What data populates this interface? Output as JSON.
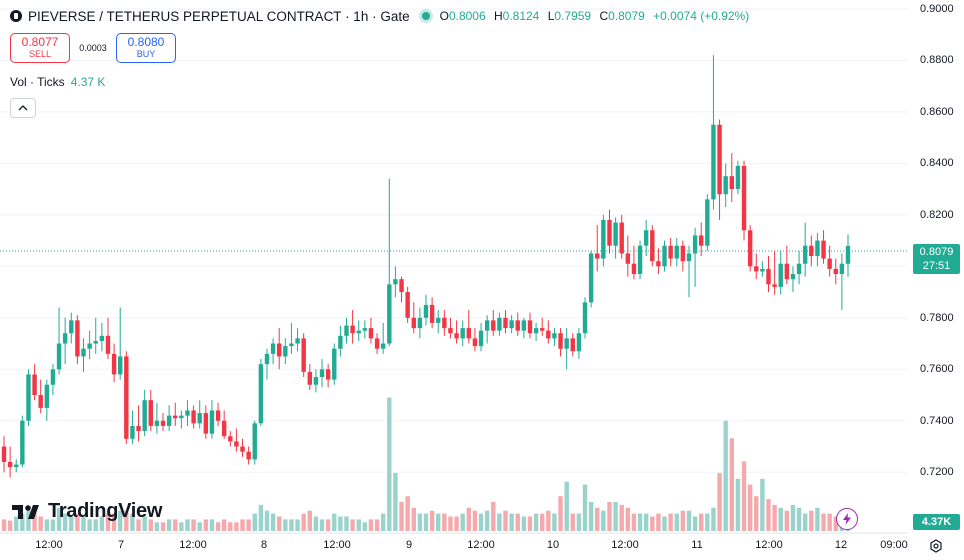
{
  "header": {
    "title": "PIEVERSE / TETHERUS PERPETUAL CONTRACT · 1h · Gate",
    "o_label": "O",
    "o": "0.8006",
    "h_label": "H",
    "h": "0.8124",
    "l_label": "L",
    "l": "0.7959",
    "c_label": "C",
    "c": "0.8079",
    "change": "+0.0074 (+0.92%)"
  },
  "trade": {
    "sell_price": "0.8077",
    "sell_label": "SELL",
    "spread": "0.0003",
    "buy_price": "0.8080",
    "buy_label": "BUY"
  },
  "volume_legend": {
    "label": "Vol · Ticks",
    "value": "4.37 K"
  },
  "price_tag": {
    "price": "0.8079",
    "countdown": "27:51"
  },
  "volume_tag": "4.37K",
  "brand": "TradingView",
  "y_axis": [
    "0.9000",
    "0.8800",
    "0.8600",
    "0.8400",
    "0.8200",
    "0.8000",
    "0.7800",
    "0.7600",
    "0.7400",
    "0.7200"
  ],
  "x_axis": [
    "12:00",
    "7",
    "12:00",
    "8",
    "12:00",
    "9",
    "12:00",
    "10",
    "12:00",
    "11",
    "12:00",
    "12",
    "09:00"
  ],
  "colors": {
    "up": "#22ab94",
    "down": "#f23645",
    "vol_up": "#99d3cb",
    "vol_down": "#f4a9ad"
  },
  "chart_data": {
    "type": "candlestick",
    "title": "PIEVERSE / TETHERUS PERPETUAL CONTRACT · 1h · Gate",
    "x_ticks": [
      "12:00",
      "7",
      "12:00",
      "8",
      "12:00",
      "9",
      "12:00",
      "10",
      "12:00",
      "11",
      "12:00",
      "12",
      "09:00"
    ],
    "y_ticks": [
      0.9,
      0.88,
      0.86,
      0.84,
      0.82,
      0.8,
      0.78,
      0.76,
      0.74,
      0.72
    ],
    "ylim": [
      0.7135,
      0.9015
    ],
    "last_price": 0.8079,
    "candles": [
      [
        0.73,
        0.734,
        0.72,
        0.724
      ],
      [
        0.724,
        0.73,
        0.718,
        0.722
      ],
      [
        0.722,
        0.725,
        0.72,
        0.723
      ],
      [
        0.723,
        0.742,
        0.722,
        0.74
      ],
      [
        0.74,
        0.76,
        0.738,
        0.758
      ],
      [
        0.758,
        0.762,
        0.748,
        0.75
      ],
      [
        0.75,
        0.756,
        0.743,
        0.745
      ],
      [
        0.745,
        0.756,
        0.74,
        0.754
      ],
      [
        0.754,
        0.762,
        0.75,
        0.76
      ],
      [
        0.76,
        0.784,
        0.758,
        0.77
      ],
      [
        0.77,
        0.78,
        0.762,
        0.774
      ],
      [
        0.774,
        0.782,
        0.77,
        0.779
      ],
      [
        0.779,
        0.781,
        0.762,
        0.765
      ],
      [
        0.765,
        0.772,
        0.759,
        0.768
      ],
      [
        0.768,
        0.775,
        0.764,
        0.77
      ],
      [
        0.77,
        0.78,
        0.766,
        0.771
      ],
      [
        0.771,
        0.778,
        0.767,
        0.773
      ],
      [
        0.773,
        0.78,
        0.764,
        0.766
      ],
      [
        0.766,
        0.77,
        0.755,
        0.758
      ],
      [
        0.758,
        0.784,
        0.756,
        0.765
      ],
      [
        0.765,
        0.767,
        0.731,
        0.733
      ],
      [
        0.733,
        0.744,
        0.731,
        0.738
      ],
      [
        0.738,
        0.746,
        0.732,
        0.736
      ],
      [
        0.736,
        0.752,
        0.734,
        0.748
      ],
      [
        0.748,
        0.752,
        0.736,
        0.738
      ],
      [
        0.738,
        0.747,
        0.735,
        0.74
      ],
      [
        0.74,
        0.743,
        0.736,
        0.738
      ],
      [
        0.738,
        0.746,
        0.736,
        0.742
      ],
      [
        0.742,
        0.747,
        0.738,
        0.741
      ],
      [
        0.741,
        0.744,
        0.737,
        0.742
      ],
      [
        0.742,
        0.748,
        0.738,
        0.744
      ],
      [
        0.744,
        0.746,
        0.737,
        0.739
      ],
      [
        0.739,
        0.748,
        0.737,
        0.743
      ],
      [
        0.743,
        0.746,
        0.733,
        0.735
      ],
      [
        0.735,
        0.748,
        0.733,
        0.744
      ],
      [
        0.744,
        0.747,
        0.738,
        0.74
      ],
      [
        0.74,
        0.744,
        0.733,
        0.734
      ],
      [
        0.734,
        0.736,
        0.73,
        0.732
      ],
      [
        0.732,
        0.737,
        0.728,
        0.73
      ],
      [
        0.73,
        0.733,
        0.726,
        0.728
      ],
      [
        0.728,
        0.73,
        0.723,
        0.725
      ],
      [
        0.725,
        0.74,
        0.723,
        0.739
      ],
      [
        0.739,
        0.764,
        0.738,
        0.762
      ],
      [
        0.762,
        0.768,
        0.756,
        0.766
      ],
      [
        0.766,
        0.772,
        0.762,
        0.77
      ],
      [
        0.77,
        0.776,
        0.76,
        0.765
      ],
      [
        0.765,
        0.772,
        0.762,
        0.769
      ],
      [
        0.769,
        0.778,
        0.766,
        0.77
      ],
      [
        0.77,
        0.776,
        0.767,
        0.772
      ],
      [
        0.772,
        0.774,
        0.757,
        0.759
      ],
      [
        0.759,
        0.762,
        0.752,
        0.754
      ],
      [
        0.754,
        0.76,
        0.751,
        0.757
      ],
      [
        0.757,
        0.764,
        0.753,
        0.76
      ],
      [
        0.76,
        0.762,
        0.753,
        0.756
      ],
      [
        0.756,
        0.77,
        0.754,
        0.768
      ],
      [
        0.768,
        0.777,
        0.765,
        0.773
      ],
      [
        0.773,
        0.78,
        0.77,
        0.777
      ],
      [
        0.777,
        0.783,
        0.77,
        0.774
      ],
      [
        0.774,
        0.779,
        0.771,
        0.775
      ],
      [
        0.775,
        0.779,
        0.772,
        0.776
      ],
      [
        0.776,
        0.78,
        0.77,
        0.772
      ],
      [
        0.772,
        0.774,
        0.766,
        0.768
      ],
      [
        0.768,
        0.778,
        0.766,
        0.77
      ],
      [
        0.77,
        0.834,
        0.769,
        0.793
      ],
      [
        0.793,
        0.8,
        0.788,
        0.795
      ],
      [
        0.795,
        0.796,
        0.786,
        0.79
      ],
      [
        0.79,
        0.792,
        0.778,
        0.78
      ],
      [
        0.78,
        0.786,
        0.774,
        0.776
      ],
      [
        0.776,
        0.784,
        0.772,
        0.78
      ],
      [
        0.78,
        0.789,
        0.777,
        0.785
      ],
      [
        0.785,
        0.788,
        0.776,
        0.778
      ],
      [
        0.778,
        0.783,
        0.774,
        0.78
      ],
      [
        0.78,
        0.783,
        0.773,
        0.776
      ],
      [
        0.776,
        0.78,
        0.772,
        0.774
      ],
      [
        0.774,
        0.779,
        0.77,
        0.772
      ],
      [
        0.772,
        0.779,
        0.769,
        0.776
      ],
      [
        0.776,
        0.783,
        0.77,
        0.772
      ],
      [
        0.772,
        0.776,
        0.767,
        0.769
      ],
      [
        0.769,
        0.778,
        0.767,
        0.775
      ],
      [
        0.775,
        0.781,
        0.77,
        0.779
      ],
      [
        0.779,
        0.783,
        0.773,
        0.775
      ],
      [
        0.775,
        0.782,
        0.773,
        0.78
      ],
      [
        0.78,
        0.783,
        0.774,
        0.776
      ],
      [
        0.776,
        0.781,
        0.774,
        0.779
      ],
      [
        0.779,
        0.782,
        0.773,
        0.775
      ],
      [
        0.775,
        0.78,
        0.772,
        0.779
      ],
      [
        0.779,
        0.782,
        0.772,
        0.774
      ],
      [
        0.774,
        0.778,
        0.771,
        0.776
      ],
      [
        0.776,
        0.78,
        0.773,
        0.775
      ],
      [
        0.775,
        0.779,
        0.77,
        0.772
      ],
      [
        0.772,
        0.776,
        0.769,
        0.774
      ],
      [
        0.774,
        0.776,
        0.765,
        0.768
      ],
      [
        0.768,
        0.776,
        0.76,
        0.772
      ],
      [
        0.772,
        0.774,
        0.765,
        0.767
      ],
      [
        0.767,
        0.776,
        0.764,
        0.774
      ],
      [
        0.774,
        0.788,
        0.772,
        0.786
      ],
      [
        0.786,
        0.806,
        0.784,
        0.805
      ],
      [
        0.805,
        0.816,
        0.798,
        0.803
      ],
      [
        0.803,
        0.82,
        0.8,
        0.818
      ],
      [
        0.818,
        0.822,
        0.805,
        0.808
      ],
      [
        0.808,
        0.819,
        0.803,
        0.817
      ],
      [
        0.817,
        0.82,
        0.803,
        0.805
      ],
      [
        0.805,
        0.812,
        0.796,
        0.801
      ],
      [
        0.801,
        0.808,
        0.795,
        0.797
      ],
      [
        0.797,
        0.81,
        0.795,
        0.808
      ],
      [
        0.808,
        0.818,
        0.804,
        0.814
      ],
      [
        0.814,
        0.816,
        0.8,
        0.802
      ],
      [
        0.802,
        0.807,
        0.797,
        0.8
      ],
      [
        0.8,
        0.81,
        0.798,
        0.808
      ],
      [
        0.808,
        0.811,
        0.8,
        0.803
      ],
      [
        0.803,
        0.811,
        0.8,
        0.808
      ],
      [
        0.808,
        0.81,
        0.798,
        0.802
      ],
      [
        0.802,
        0.808,
        0.788,
        0.805
      ],
      [
        0.805,
        0.815,
        0.792,
        0.812
      ],
      [
        0.812,
        0.817,
        0.804,
        0.808
      ],
      [
        0.808,
        0.828,
        0.806,
        0.826
      ],
      [
        0.826,
        0.882,
        0.822,
        0.855
      ],
      [
        0.855,
        0.857,
        0.818,
        0.828
      ],
      [
        0.828,
        0.84,
        0.823,
        0.835
      ],
      [
        0.835,
        0.844,
        0.825,
        0.83
      ],
      [
        0.83,
        0.841,
        0.828,
        0.839
      ],
      [
        0.839,
        0.841,
        0.81,
        0.814
      ],
      [
        0.814,
        0.816,
        0.798,
        0.8
      ],
      [
        0.8,
        0.805,
        0.795,
        0.798
      ],
      [
        0.798,
        0.802,
        0.796,
        0.799
      ],
      [
        0.799,
        0.804,
        0.79,
        0.793
      ],
      [
        0.793,
        0.806,
        0.789,
        0.792
      ],
      [
        0.792,
        0.806,
        0.789,
        0.801
      ],
      [
        0.801,
        0.808,
        0.793,
        0.795
      ],
      [
        0.795,
        0.8,
        0.79,
        0.797
      ],
      [
        0.797,
        0.806,
        0.793,
        0.801
      ],
      [
        0.801,
        0.817,
        0.796,
        0.808
      ],
      [
        0.808,
        0.812,
        0.8,
        0.804
      ],
      [
        0.804,
        0.813,
        0.8,
        0.81
      ],
      [
        0.81,
        0.814,
        0.801,
        0.803
      ],
      [
        0.803,
        0.808,
        0.796,
        0.799
      ],
      [
        0.799,
        0.803,
        0.793,
        0.797
      ],
      [
        0.797,
        0.805,
        0.783,
        0.801
      ],
      [
        0.801,
        0.8124,
        0.7959,
        0.8079
      ]
    ],
    "volumes": [
      0.2,
      0.18,
      0.25,
      0.3,
      0.35,
      0.3,
      0.25,
      0.2,
      0.2,
      0.4,
      0.3,
      0.25,
      0.3,
      0.25,
      0.2,
      0.2,
      0.25,
      0.3,
      0.3,
      0.35,
      0.35,
      0.3,
      0.2,
      0.25,
      0.2,
      0.15,
      0.15,
      0.2,
      0.2,
      0.15,
      0.2,
      0.2,
      0.15,
      0.2,
      0.2,
      0.15,
      0.2,
      0.15,
      0.15,
      0.2,
      0.2,
      0.3,
      0.45,
      0.35,
      0.3,
      0.25,
      0.2,
      0.2,
      0.2,
      0.3,
      0.35,
      0.25,
      0.2,
      0.2,
      0.3,
      0.25,
      0.25,
      0.2,
      0.2,
      0.15,
      0.2,
      0.2,
      0.3,
      2.3,
      1.0,
      0.5,
      0.6,
      0.4,
      0.3,
      0.3,
      0.35,
      0.3,
      0.3,
      0.25,
      0.25,
      0.3,
      0.4,
      0.35,
      0.3,
      0.35,
      0.5,
      0.3,
      0.35,
      0.3,
      0.3,
      0.25,
      0.25,
      0.3,
      0.3,
      0.35,
      0.3,
      0.6,
      0.85,
      0.3,
      0.3,
      0.8,
      0.5,
      0.4,
      0.35,
      0.5,
      0.5,
      0.45,
      0.4,
      0.3,
      0.3,
      0.3,
      0.25,
      0.3,
      0.25,
      0.3,
      0.3,
      0.35,
      0.35,
      0.25,
      0.3,
      0.3,
      0.4,
      1.0,
      1.9,
      1.6,
      0.9,
      1.2,
      0.8,
      0.6,
      0.9,
      0.55,
      0.45,
      0.4,
      0.35,
      0.45,
      0.4,
      0.3,
      0.35,
      0.4,
      0.3,
      0.3,
      0.25,
      0.35,
      0.25,
      0.55,
      0.6
    ]
  }
}
